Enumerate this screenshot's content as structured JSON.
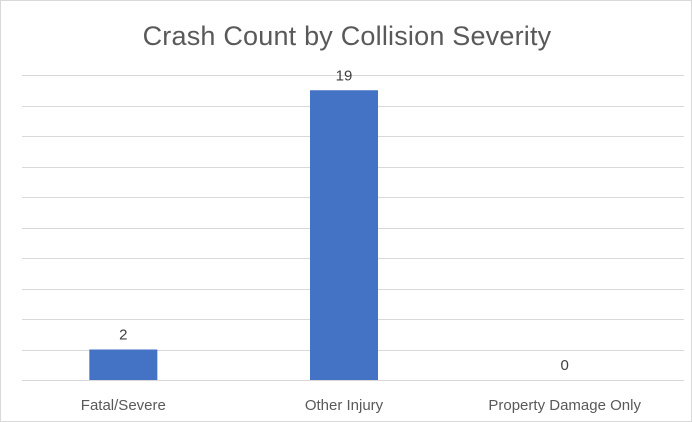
{
  "chart_data": {
    "type": "bar",
    "title": "Crash Count by Collision Severity",
    "xlabel": "",
    "ylabel": "",
    "categories": [
      "Fatal/Severe",
      "Other Injury",
      "Property Damage Only"
    ],
    "values": [
      2,
      19,
      0
    ],
    "data_labels": [
      "2",
      "19",
      "0"
    ],
    "ylim": [
      0,
      20
    ],
    "gridlines": true,
    "grid_step": 2,
    "legend": "none",
    "bar_color": "#4472c4",
    "grid_color": "#d9d9d9"
  }
}
